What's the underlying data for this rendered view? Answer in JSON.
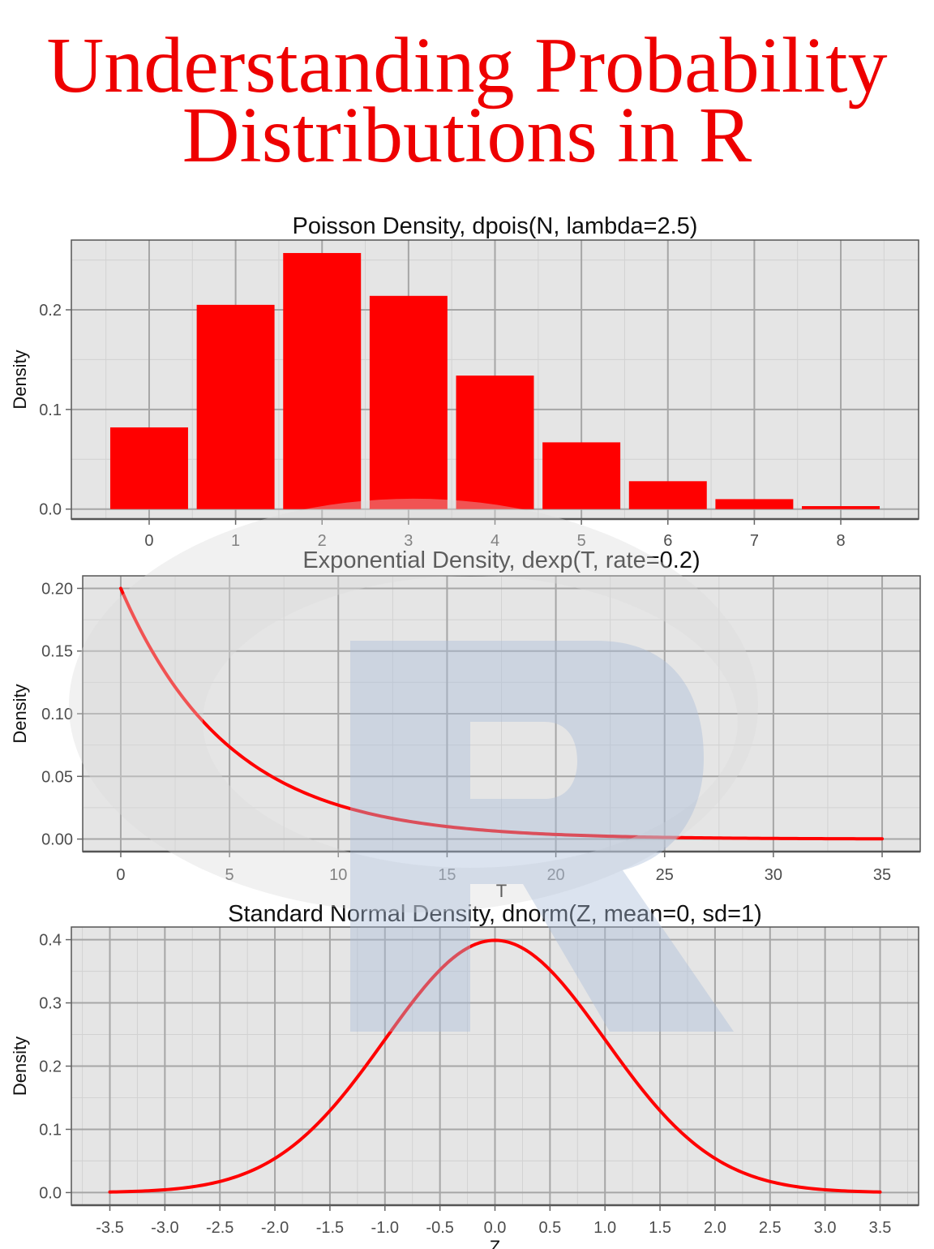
{
  "page": {
    "title_line1": "Understanding Probability",
    "title_line2": "Distributions in R"
  },
  "colors": {
    "accent": "#ff0000",
    "panel_bg": "#e5e5e5",
    "grid_major": "#a6a6a6",
    "grid_minor": "#d2d2d2",
    "watermark_ring": "#d9d9d9",
    "watermark_letter": "#a9bcd8"
  },
  "watermark": {
    "icon": "r-logo-icon"
  },
  "chart_data": [
    {
      "type": "bar",
      "title": "Poisson Density, dpois(N, lambda=2.5)",
      "xlabel": "",
      "ylabel": "Density",
      "x": [
        0,
        1,
        2,
        3,
        4,
        5,
        6,
        7,
        8
      ],
      "values": [
        0.082,
        0.205,
        0.257,
        0.214,
        0.134,
        0.067,
        0.028,
        0.01,
        0.003
      ],
      "xlim": [
        -0.9,
        8.9
      ],
      "ylim": [
        -0.01,
        0.27
      ],
      "xticks": [
        0,
        1,
        2,
        3,
        4,
        5,
        6,
        7,
        8
      ],
      "xtick_labels": [
        "0",
        "1",
        "2",
        "3",
        "4",
        "5",
        "6",
        "7",
        "8"
      ],
      "yticks": [
        0,
        0.1,
        0.2
      ],
      "ytick_labels": [
        "0.0",
        "0.1",
        "0.2"
      ],
      "xminor": [
        -0.5,
        0.5,
        1.5,
        2.5,
        3.5,
        4.5,
        5.5,
        6.5,
        7.5,
        8.5
      ],
      "yminor": [
        0.05,
        0.15,
        0.25
      ],
      "grid": true,
      "legend": "none"
    },
    {
      "type": "line",
      "title": "Exponential Density, dexp(T, rate=0.2)",
      "xlabel": "T",
      "ylabel": "Density",
      "function": "dexp(T, rate=0.2)",
      "rate": 0.2,
      "x_range": [
        0,
        35
      ],
      "xlim": [
        -1.75,
        36.75
      ],
      "ylim": [
        -0.01,
        0.21
      ],
      "xticks": [
        0,
        5,
        10,
        15,
        20,
        25,
        30,
        35
      ],
      "xtick_labels": [
        "0",
        "5",
        "10",
        "15",
        "20",
        "25",
        "30",
        "35"
      ],
      "yticks": [
        0,
        0.05,
        0.1,
        0.15,
        0.2
      ],
      "ytick_labels": [
        "0.00",
        "0.05",
        "0.10",
        "0.15",
        "0.20"
      ],
      "xminor": [
        2.5,
        7.5,
        12.5,
        17.5,
        22.5,
        27.5,
        32.5
      ],
      "yminor": [
        0.025,
        0.075,
        0.125,
        0.175
      ],
      "grid": true,
      "legend": "none"
    },
    {
      "type": "line",
      "title": "Standard Normal Density, dnorm(Z, mean=0, sd=1)",
      "xlabel": "Z",
      "ylabel": "Density",
      "function": "dnorm(Z, mean=0, sd=1)",
      "mean": 0,
      "sd": 1,
      "x_range": [
        -3.5,
        3.5
      ],
      "xlim": [
        -3.85,
        3.85
      ],
      "ylim": [
        -0.02,
        0.42
      ],
      "xticks": [
        -3.5,
        -3,
        -2.5,
        -2,
        -1.5,
        -1,
        -0.5,
        0,
        0.5,
        1,
        1.5,
        2,
        2.5,
        3,
        3.5
      ],
      "xtick_labels": [
        "-3.5",
        "-3.0",
        "-2.5",
        "-2.0",
        "-1.5",
        "-1.0",
        "-0.5",
        "0.0",
        "0.5",
        "1.0",
        "1.5",
        "2.0",
        "2.5",
        "3.0",
        "3.5"
      ],
      "yticks": [
        0,
        0.1,
        0.2,
        0.3,
        0.4
      ],
      "ytick_labels": [
        "0.0",
        "0.1",
        "0.2",
        "0.3",
        "0.4"
      ],
      "xminor": [
        -3.75,
        -3.25,
        -2.75,
        -2.25,
        -1.75,
        -1.25,
        -0.75,
        -0.25,
        0.25,
        0.75,
        1.25,
        1.75,
        2.25,
        2.75,
        3.25,
        3.75
      ],
      "yminor": [
        0.05,
        0.15,
        0.25,
        0.35
      ],
      "grid": true,
      "legend": "none"
    }
  ]
}
